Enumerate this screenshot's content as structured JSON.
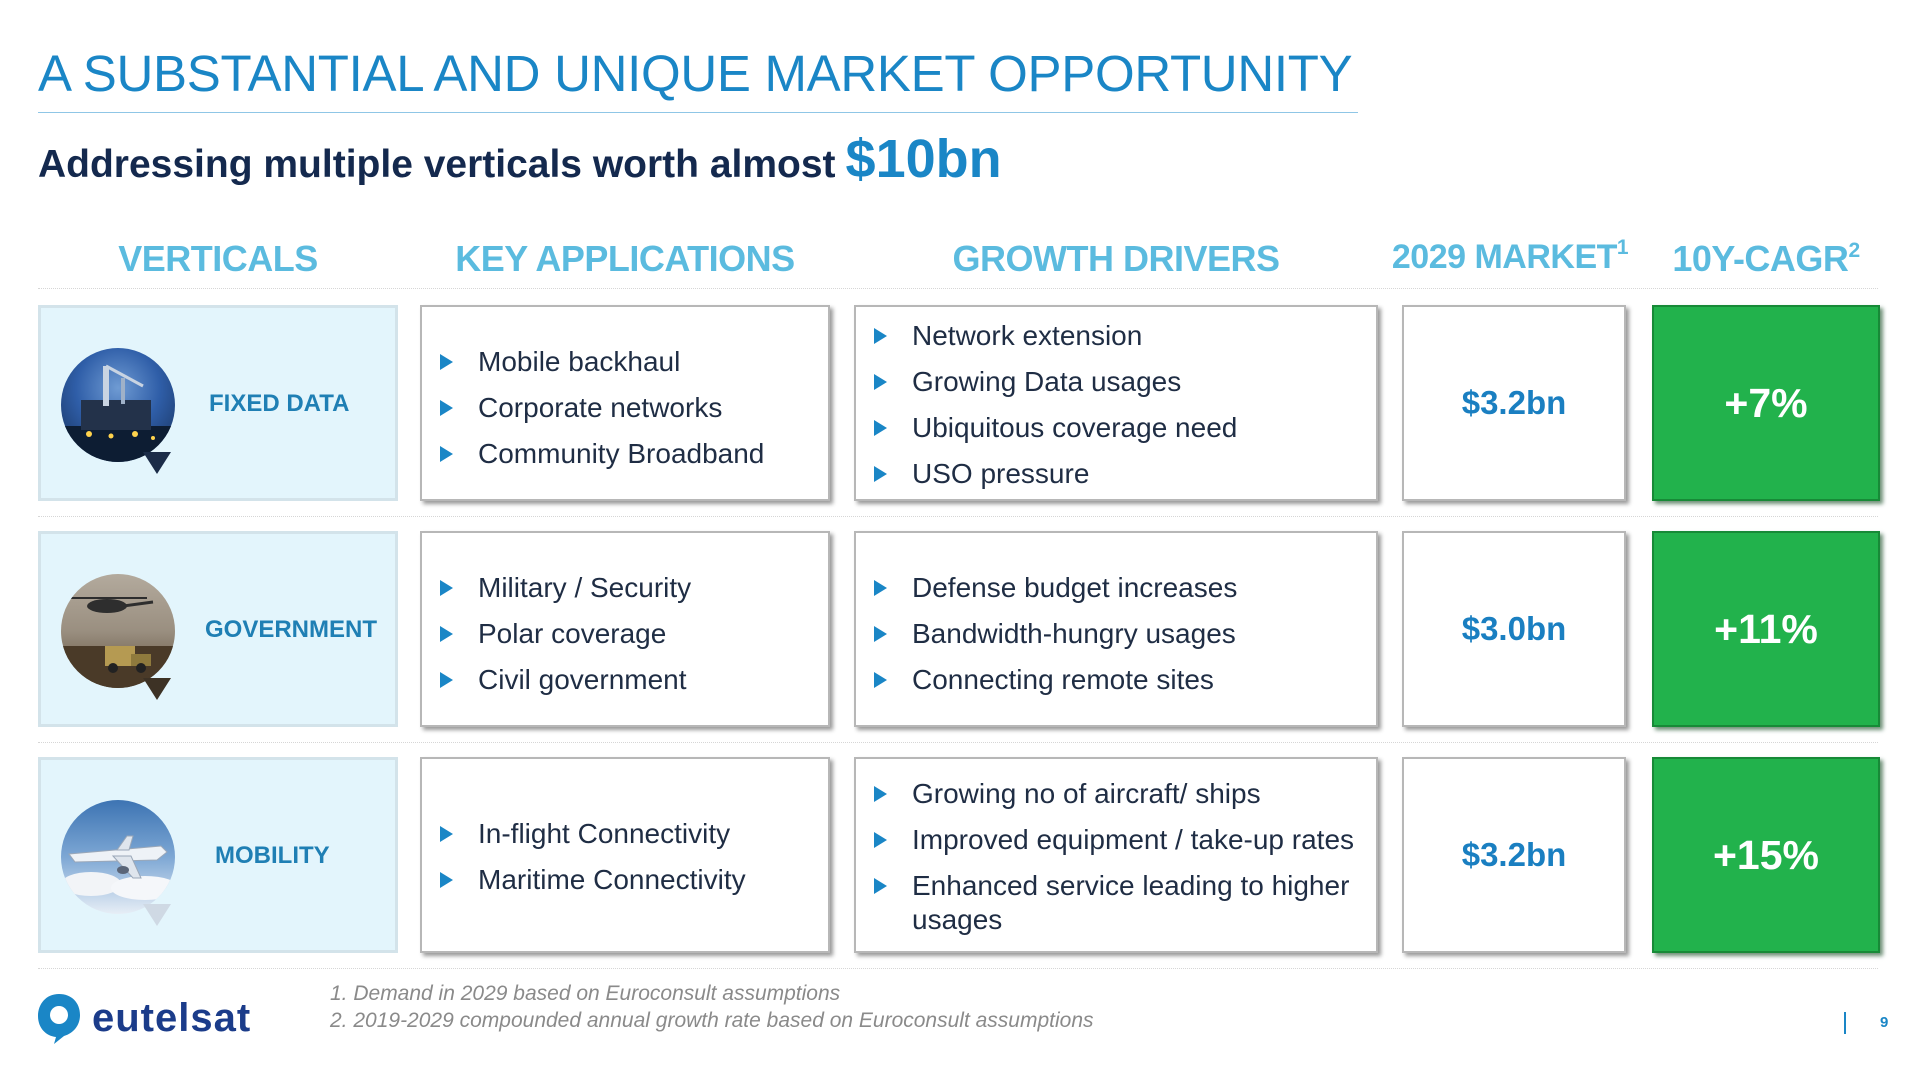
{
  "title": "A SUBSTANTIAL AND UNIQUE MARKET OPPORTUNITY",
  "subtitle": {
    "text": "Addressing multiple verticals worth almost",
    "highlight": "$10bn"
  },
  "columns": {
    "verticals": "VERTICALS",
    "key_applications": "KEY APPLICATIONS",
    "growth_drivers": "GROWTH DRIVERS",
    "market": "2029 MARKET",
    "market_sup": "1",
    "cagr": "10Y-CAGR",
    "cagr_sup": "2"
  },
  "rows": [
    {
      "vertical": "FIXED DATA",
      "icon": "offshore-platform-icon",
      "applications": [
        "Mobile backhaul",
        "Corporate networks",
        "Community Broadband"
      ],
      "drivers": [
        "Network extension",
        "Growing Data usages",
        "Ubiquitous coverage need",
        "USO pressure"
      ],
      "market": "$3.2bn",
      "cagr": "+7%"
    },
    {
      "vertical": "GOVERNMENT",
      "icon": "military-helicopter-icon",
      "applications": [
        "Military / Security",
        "Polar coverage",
        "Civil government"
      ],
      "drivers": [
        "Defense budget increases",
        "Bandwidth-hungry usages",
        "Connecting remote sites"
      ],
      "market": "$3.0bn",
      "cagr": "+11%"
    },
    {
      "vertical": "MOBILITY",
      "icon": "airplane-icon",
      "applications": [
        "In-flight Connectivity",
        "Maritime Connectivity"
      ],
      "drivers": [
        "Growing no of aircraft/ ships",
        "Improved equipment / take-up rates",
        "Enhanced service leading to higher usages"
      ],
      "market": "$3.2bn",
      "cagr": "+15%"
    }
  ],
  "footnotes": [
    "1. Demand in 2029 based on Euroconsult assumptions",
    "2. 2019-2029 compounded annual growth rate based on Euroconsult assumptions"
  ],
  "logo": "eutelsat",
  "page_number": "9",
  "colors": {
    "brand_blue": "#1a86c6",
    "navy": "#14294e",
    "header_cyan": "#5bbbdf",
    "green": "#22b24c",
    "vertical_bg": "#e3f5fc"
  }
}
